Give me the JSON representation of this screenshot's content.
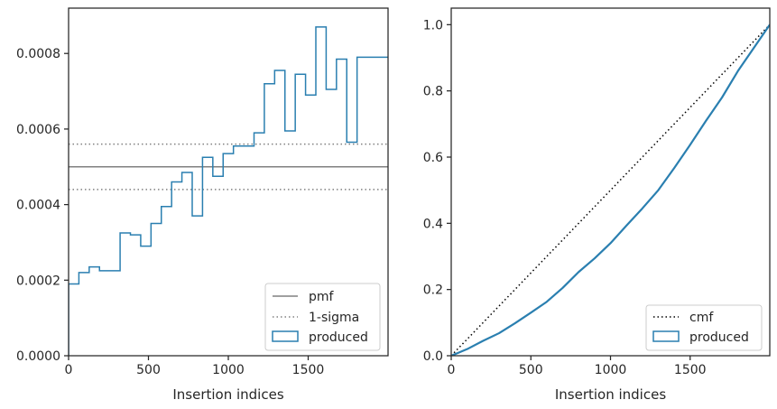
{
  "chart_data": [
    {
      "type": "histogram",
      "xlabel": "Insertion indices",
      "ylabel": "",
      "xlim": [
        0,
        2000
      ],
      "ylim": [
        0,
        0.00092
      ],
      "x_ticks": [
        "0",
        "500",
        "1000",
        "1500"
      ],
      "y_ticks": [
        "0.0000",
        "0.0002",
        "0.0004",
        "0.0006",
        "0.0008"
      ],
      "x_tick_values": [
        0,
        500,
        1000,
        1500
      ],
      "y_tick_values": [
        0,
        0.0002,
        0.0004,
        0.0006,
        0.0008
      ],
      "pmf": 0.0005,
      "sigma_lines": [
        0.00044,
        0.00056
      ],
      "bin_width": 64.5,
      "produced": [
        0.00019,
        0.00022,
        0.000235,
        0.000225,
        0.000225,
        0.000325,
        0.00032,
        0.00029,
        0.00035,
        0.000395,
        0.00046,
        0.000485,
        0.00037,
        0.000525,
        0.000475,
        0.000535,
        0.000555,
        0.000555,
        0.00059,
        0.00072,
        0.000755,
        0.000595,
        0.000745,
        0.00069,
        0.00087,
        0.000705,
        0.000785,
        0.000565,
        0.00079,
        0.00079,
        0.00079
      ],
      "legend": [
        {
          "label": "pmf",
          "style": "solid",
          "color": "#808080"
        },
        {
          "label": "1-sigma",
          "style": "dotted",
          "color": "#808080"
        },
        {
          "label": "produced",
          "style": "step-box",
          "color": "#2a7fb0"
        }
      ],
      "legend_position": "lower-right"
    },
    {
      "type": "line",
      "xlabel": "Insertion indices",
      "ylabel": "",
      "xlim": [
        0,
        2000
      ],
      "ylim": [
        0,
        1.05
      ],
      "x_ticks": [
        "0",
        "500",
        "1000",
        "1500"
      ],
      "y_ticks": [
        "0.0",
        "0.2",
        "0.4",
        "0.6",
        "0.8",
        "1.0"
      ],
      "x_tick_values": [
        0,
        500,
        1000,
        1500
      ],
      "y_tick_values": [
        0,
        0.2,
        0.4,
        0.6,
        0.8,
        1.0
      ],
      "cmf": {
        "x": [
          0,
          2000
        ],
        "y": [
          0,
          1
        ]
      },
      "produced": {
        "x": [
          0,
          100,
          200,
          300,
          400,
          500,
          600,
          700,
          800,
          900,
          1000,
          1100,
          1200,
          1300,
          1400,
          1500,
          1600,
          1700,
          1800,
          1900,
          2000
        ],
        "y": [
          0,
          0.02,
          0.045,
          0.068,
          0.098,
          0.13,
          0.163,
          0.205,
          0.253,
          0.294,
          0.34,
          0.393,
          0.445,
          0.5,
          0.567,
          0.637,
          0.71,
          0.78,
          0.86,
          0.93,
          1.0
        ]
      },
      "legend": [
        {
          "label": "cmf",
          "style": "dotted",
          "color": "#000000"
        },
        {
          "label": "produced",
          "style": "step-box",
          "color": "#2a7fb0"
        }
      ],
      "legend_position": "lower-right"
    }
  ],
  "colors": {
    "produced": "#2a7fb0",
    "pmf": "#808080",
    "cmf": "#000000",
    "axes": "#262626"
  }
}
